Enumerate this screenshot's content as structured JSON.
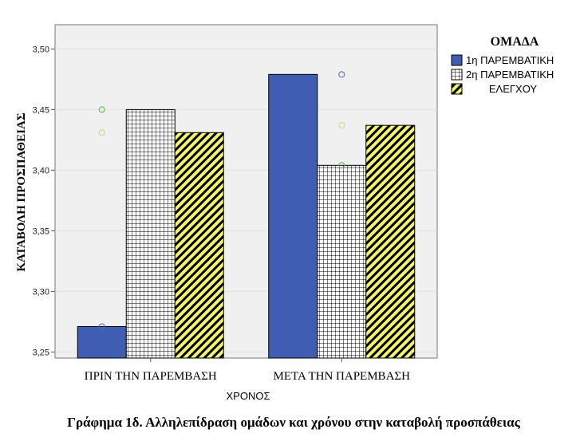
{
  "chart_data": {
    "type": "bar",
    "categories": [
      "ΠΡΙΝ ΤΗΝ ΠΑΡΕΜΒΑΣΗ",
      "ΜΕΤΑ ΤΗΝ ΠΑΡΕΜΒΑΣΗ"
    ],
    "series": [
      {
        "name": "1η ΠΑΡΕΜΒΑΤΙΚΗ",
        "values": [
          3.271,
          3.479
        ],
        "color": "#3f5eb3",
        "pattern": "solid"
      },
      {
        "name": "2η ΠΑΡΕΜΒΑΤΙΚΗ",
        "values": [
          3.45,
          3.404
        ],
        "color": "#ffffff",
        "pattern": "grid"
      },
      {
        "name": "ΕΛΕΓΧΟΥ",
        "values": [
          3.431,
          3.437
        ],
        "color": "#f5f56a",
        "pattern": "diagonal"
      }
    ],
    "outliers": [
      {
        "category": 0,
        "series": 0,
        "value": 3.271,
        "color": "#4a66c4"
      },
      {
        "category": 0,
        "series": 0,
        "value": 3.45,
        "color": "#55b84a"
      },
      {
        "category": 0,
        "series": 0,
        "value": 3.431,
        "color": "#c9d77a"
      },
      {
        "category": 1,
        "series": 0,
        "value": 3.479,
        "color": "#4a66c4"
      },
      {
        "category": 1,
        "series": 0,
        "value": 3.437,
        "color": "#c9d77a"
      },
      {
        "category": 1,
        "series": 0,
        "value": 3.404,
        "color": "#55b84a"
      }
    ],
    "ylim": [
      3.245,
      3.52
    ],
    "yticks": [
      "3,25",
      "3,30",
      "3,35",
      "3,40",
      "3,45",
      "3,50"
    ],
    "ytick_values": [
      3.25,
      3.3,
      3.35,
      3.4,
      3.45,
      3.5
    ],
    "xlabel": "ΧΡΟΝΟΣ",
    "ylabel": "ΚΑΤΑΒΟΛΗ ΠΡΟΣΠΑΘΕΙΑΣ",
    "legend_title": "ΟΜΑΔΑ",
    "legend_position": "right",
    "plot_background": "#f0f0f0",
    "grid": true,
    "caption": "Γράφημα 1δ. Αλληλεπίδραση ομάδων και χρόνου στην καταβολή προσπάθειας"
  }
}
